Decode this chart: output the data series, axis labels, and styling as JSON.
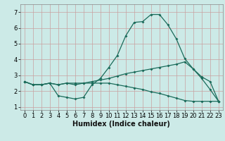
{
  "xlabel": "Humidex (Indice chaleur)",
  "bg_color": "#cceae7",
  "grid_color": "#c8a0a0",
  "line_color": "#1a6b5a",
  "xlim": [
    -0.5,
    23.5
  ],
  "ylim": [
    0.8,
    7.5
  ],
  "xticks": [
    0,
    1,
    2,
    3,
    4,
    5,
    6,
    7,
    8,
    9,
    10,
    11,
    12,
    13,
    14,
    15,
    16,
    17,
    18,
    19,
    20,
    21,
    22,
    23
  ],
  "yticks": [
    1,
    2,
    3,
    4,
    5,
    6,
    7
  ],
  "line1_x": [
    0,
    1,
    2,
    3,
    4,
    5,
    6,
    7,
    8,
    9,
    10,
    11,
    12,
    13,
    14,
    15,
    16,
    17,
    18,
    19,
    20,
    21,
    22,
    23
  ],
  "line1_y": [
    2.6,
    2.4,
    2.4,
    2.5,
    1.7,
    1.6,
    1.5,
    1.6,
    2.4,
    2.8,
    3.5,
    4.25,
    5.5,
    6.35,
    6.4,
    6.85,
    6.85,
    6.2,
    5.3,
    4.05,
    3.4,
    2.8,
    2.1,
    1.35
  ],
  "line2_x": [
    0,
    1,
    2,
    3,
    4,
    5,
    6,
    7,
    8,
    9,
    10,
    11,
    12,
    13,
    14,
    15,
    16,
    17,
    18,
    19,
    20,
    21,
    22,
    23
  ],
  "line2_y": [
    2.6,
    2.4,
    2.4,
    2.5,
    2.4,
    2.5,
    2.5,
    2.5,
    2.6,
    2.7,
    2.8,
    2.95,
    3.1,
    3.2,
    3.3,
    3.4,
    3.5,
    3.6,
    3.7,
    3.85,
    3.4,
    2.9,
    2.6,
    1.35
  ],
  "line3_x": [
    0,
    1,
    2,
    3,
    4,
    5,
    6,
    7,
    8,
    9,
    10,
    11,
    12,
    13,
    14,
    15,
    16,
    17,
    18,
    19,
    20,
    21,
    22,
    23
  ],
  "line3_y": [
    2.6,
    2.4,
    2.4,
    2.5,
    2.4,
    2.5,
    2.4,
    2.5,
    2.5,
    2.5,
    2.5,
    2.4,
    2.3,
    2.2,
    2.1,
    1.95,
    1.85,
    1.7,
    1.55,
    1.4,
    1.35,
    1.35,
    1.35,
    1.35
  ],
  "tick_fontsize": 6,
  "xlabel_fontsize": 7,
  "marker_size": 2.0,
  "line_width": 0.9
}
